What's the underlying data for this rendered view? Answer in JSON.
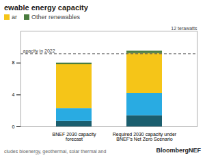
{
  "chart_data": {
    "type": "bar",
    "stacked": true,
    "title": "ewable energy capacity",
    "categories": [
      "BNEF 2030 capacity\nforecast",
      "Required 2030 capacity under\nBNEF’s Net Zero Scenario"
    ],
    "series": [
      {
        "color": "#1b5e6e",
        "values": [
          0.7,
          1.4
        ]
      },
      {
        "color": "#29abe2",
        "values": [
          1.6,
          2.8
        ]
      },
      {
        "name": "ar",
        "color": "#f5c518",
        "values": [
          5.5,
          5.0
        ]
      },
      {
        "name": "Other renewables",
        "color": "#4a7c3f",
        "values": [
          0.2,
          0.3
        ]
      }
    ],
    "ylim": [
      0,
      12.0
    ],
    "yticks": [
      0,
      4,
      8
    ],
    "grid": false,
    "hline": {
      "value": 9.15,
      "label": "apacity in 2022",
      "line_style": "dashed"
    },
    "annotations": [
      {
        "text": "12 terawatts",
        "y": 12.0
      }
    ],
    "footnote": "cludes bioenergy, geothermal, solar thermal and",
    "source": "BloombergNEF"
  }
}
